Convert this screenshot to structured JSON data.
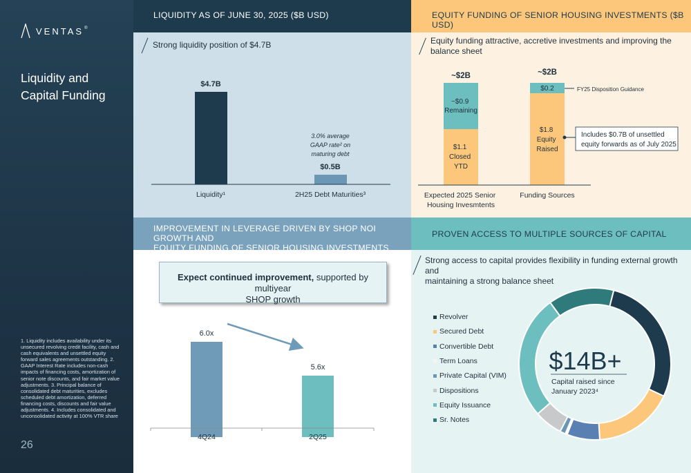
{
  "sidebar": {
    "logo_text": "VENTAS",
    "trademark": "®",
    "title_line1": "Liquidity and",
    "title_line2": "Capital Funding",
    "footnotes": "1. Liquidity includes availability under its unsecured revolving credit facility, cash and cash equivalents and unsettled equity forward sales agreements outstanding.  2. GAAP Interest Rate includes non-cash impacts of financing costs, amortization of senior note discounts, and fair market value adjustments. 3.  Principal balance of consolidated debt maturities, excludes scheduled debt amortization, deferred financing costs, discounts and fair value adjustments. 4. Includes consolidated and unconsolidated activity at 100% VTR share",
    "page_number": "26"
  },
  "liquidity": {
    "header": "LIQUIDITY AS OF JUNE 30, 2025 ($B USD)",
    "subtitle": "Strong liquidity position of $4.7B",
    "annotation_line1": "3.0% average",
    "annotation_line2": "GAAP rate² on",
    "annotation_line3": "maturing debt"
  },
  "equity": {
    "header": "EQUITY FUNDING OF SENIOR HOUSING INVESTMENTS ($B USD)",
    "subtitle_line1": "Equity funding attractive, accretive investments and improving the",
    "subtitle_line2": "balance sheet",
    "guidance_label": "FY25 Disposition Guidance",
    "forward_note_line1": "Includes $0.7B of unsettled",
    "forward_note_line2": "equity forwards as of July 2025"
  },
  "leverage": {
    "header_line1": "IMPROVEMENT IN LEVERAGE DRIVEN BY SHOP NOI GROWTH AND",
    "header_line2": "EQUITY FUNDING OF SENIOR HOUSING INVESTMENTS",
    "callout_bold": "Expect continued improvement,",
    "callout_rest": " supported by multiyear",
    "callout_line2": "SHOP growth"
  },
  "capital": {
    "header": "PROVEN ACCESS TO MULTIPLE SOURCES OF CAPITAL",
    "subtitle_line1": "Strong access to capital provides flexibility in funding external growth and",
    "subtitle_line2": "maintaining a strong balance sheet",
    "center_value": "$14B+",
    "center_label_line1": "Capital raised since",
    "center_label_line2": "January 2023⁴"
  },
  "chart_data": [
    {
      "type": "bar",
      "categories": [
        "Liquidity¹",
        "2H25 Debt Maturities³"
      ],
      "values": [
        4.7,
        0.5
      ],
      "data_labels": [
        "$4.7B",
        "$0.5B"
      ],
      "colors": [
        "#1e3a4d",
        "#6b97b5"
      ],
      "ylim": [
        0,
        5.5
      ]
    },
    {
      "type": "bar",
      "stacked": true,
      "categories": [
        "Expected 2025 Senior Housing Invesmtents",
        "Funding Sources"
      ],
      "totals": [
        "~$2B",
        "~$2B"
      ],
      "series": [
        {
          "values": [
            1.1,
            1.8
          ],
          "labels": [
            "$1.1 Closed YTD",
            "$1.8 Equity Raised"
          ],
          "color": "#fcc77b"
        },
        {
          "values": [
            0.9,
            0.2
          ],
          "labels": [
            "~$0.9 Remaining",
            "$0.2"
          ],
          "color": "#6dbfbf"
        }
      ],
      "ylim": [
        0,
        2.4
      ]
    },
    {
      "type": "bar",
      "categories": [
        "4Q24",
        "2Q25"
      ],
      "values": [
        6.0,
        5.6
      ],
      "data_labels": [
        "6.0x",
        "5.6x"
      ],
      "colors": [
        "#6f9bb8",
        "#6dbfbf"
      ],
      "ylim": [
        0,
        7.2
      ]
    },
    {
      "type": "pie",
      "donut": true,
      "labels": [
        "Revolver",
        "Secured Debt",
        "Convertible Debt",
        "Term Loans",
        "Private Capital (VIM)",
        "Dispositions",
        "Equity Issuance",
        "Sr. Notes"
      ],
      "values": [
        28,
        17,
        7,
        0.4,
        1.2,
        6,
        26.4,
        14
      ],
      "colors": [
        "#1e3a4d",
        "#fcc77b",
        "#5a7fb3",
        "#ffffff",
        "#6b97b5",
        "#c7c9cb",
        "#6dbfbf",
        "#2f7a7a"
      ]
    }
  ]
}
